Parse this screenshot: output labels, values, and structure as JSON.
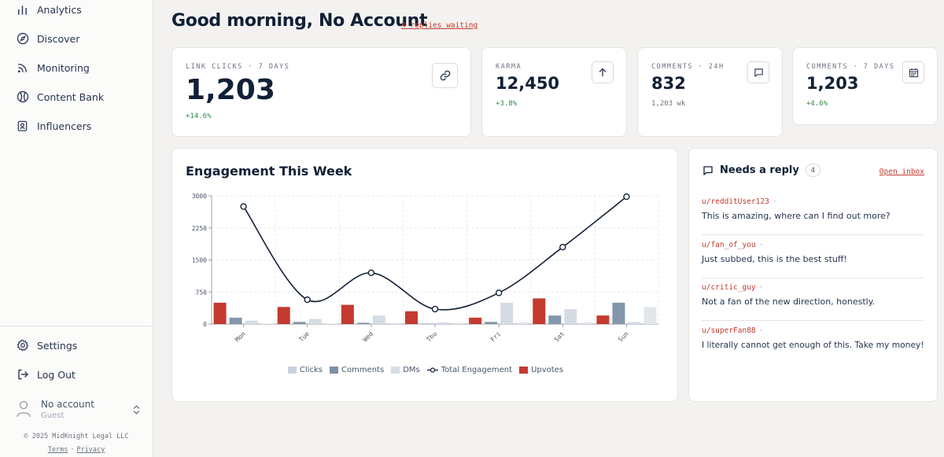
{
  "sidebar": {
    "nav": [
      {
        "label": "Analytics",
        "icon": "bar-chart-icon"
      },
      {
        "label": "Discover",
        "icon": "compass-icon"
      },
      {
        "label": "Monitoring",
        "icon": "rss-icon"
      },
      {
        "label": "Content Bank",
        "icon": "content-bank-icon"
      },
      {
        "label": "Influencers",
        "icon": "contact-badge-icon"
      }
    ],
    "bottom": [
      {
        "label": "Settings",
        "icon": "gear-icon"
      },
      {
        "label": "Log Out",
        "icon": "logout-icon"
      }
    ],
    "account": {
      "name": "No account",
      "role": "Guest"
    },
    "footer": {
      "copyright": "© 2025 MidKnight Legal LLC",
      "terms": "Terms",
      "privacy": "Privacy"
    }
  },
  "header": {
    "greeting": "Good morning, No Account",
    "replies_link": "4 replies waiting"
  },
  "stats": [
    {
      "label": "LINK CLICKS · 7 DAYS",
      "value": "1,203",
      "sub": "+14.6%",
      "icon": "link-icon"
    },
    {
      "label": "KARMA",
      "value": "12,450",
      "sub": "+3.8%",
      "icon": "arrow-up-icon"
    },
    {
      "label": "COMMENTS · 24H",
      "value": "832",
      "sub": "1,203 wk",
      "icon": "message-icon"
    },
    {
      "label": "COMMENTS · 7 DAYS",
      "value": "1,203",
      "sub": "+4.6%",
      "icon": "calendar-icon"
    }
  ],
  "chart": {
    "title": "Engagement This Week",
    "legend": [
      "Clicks",
      "Comments",
      "DMs",
      "Total Engagement",
      "Upvotes"
    ]
  },
  "chart_data": {
    "type": "bar",
    "categories": [
      "Mon",
      "Tue",
      "Wed",
      "Thu",
      "Fri",
      "Sat",
      "Sun"
    ],
    "ylim": [
      0,
      3000
    ],
    "yticks": [
      "0",
      "750",
      "1500",
      "2250",
      "3000"
    ],
    "grid": true,
    "legend_position": "bottom",
    "series": [
      {
        "name": "Upvotes",
        "type": "bar",
        "color": "#c43a2f",
        "values": [
          500,
          400,
          450,
          300,
          150,
          600,
          200
        ]
      },
      {
        "name": "Comments",
        "type": "bar",
        "color": "#8396ab",
        "values": [
          150,
          50,
          30,
          10,
          50,
          200,
          500
        ]
      },
      {
        "name": "DMs",
        "type": "bar",
        "color": "#d6dce3",
        "values": [
          80,
          120,
          200,
          40,
          500,
          350,
          50
        ]
      },
      {
        "name": "Clicks",
        "type": "bar",
        "color": "#e2e7ec",
        "values": [
          10,
          10,
          20,
          30,
          40,
          40,
          400
        ]
      },
      {
        "name": "Total Engagement",
        "type": "line",
        "color": "#102036",
        "values": [
          2750,
          570,
          1200,
          350,
          730,
          1800,
          2980
        ]
      }
    ]
  },
  "replies": {
    "title": "Needs a reply",
    "count": "4",
    "open_inbox": "Open inbox",
    "items": [
      {
        "user": "u/redditUser123",
        "dot": "·",
        "text": "This is amazing, where can I find out more?"
      },
      {
        "user": "u/fan_of_you",
        "dot": "·",
        "text": "Just subbed, this is the best stuff!"
      },
      {
        "user": "u/critic_guy",
        "dot": "·",
        "text": "Not a fan of the new direction, honestly."
      },
      {
        "user": "u/superFan88",
        "dot": "·",
        "text": "I literally cannot get enough of this. Take my money!"
      }
    ]
  }
}
